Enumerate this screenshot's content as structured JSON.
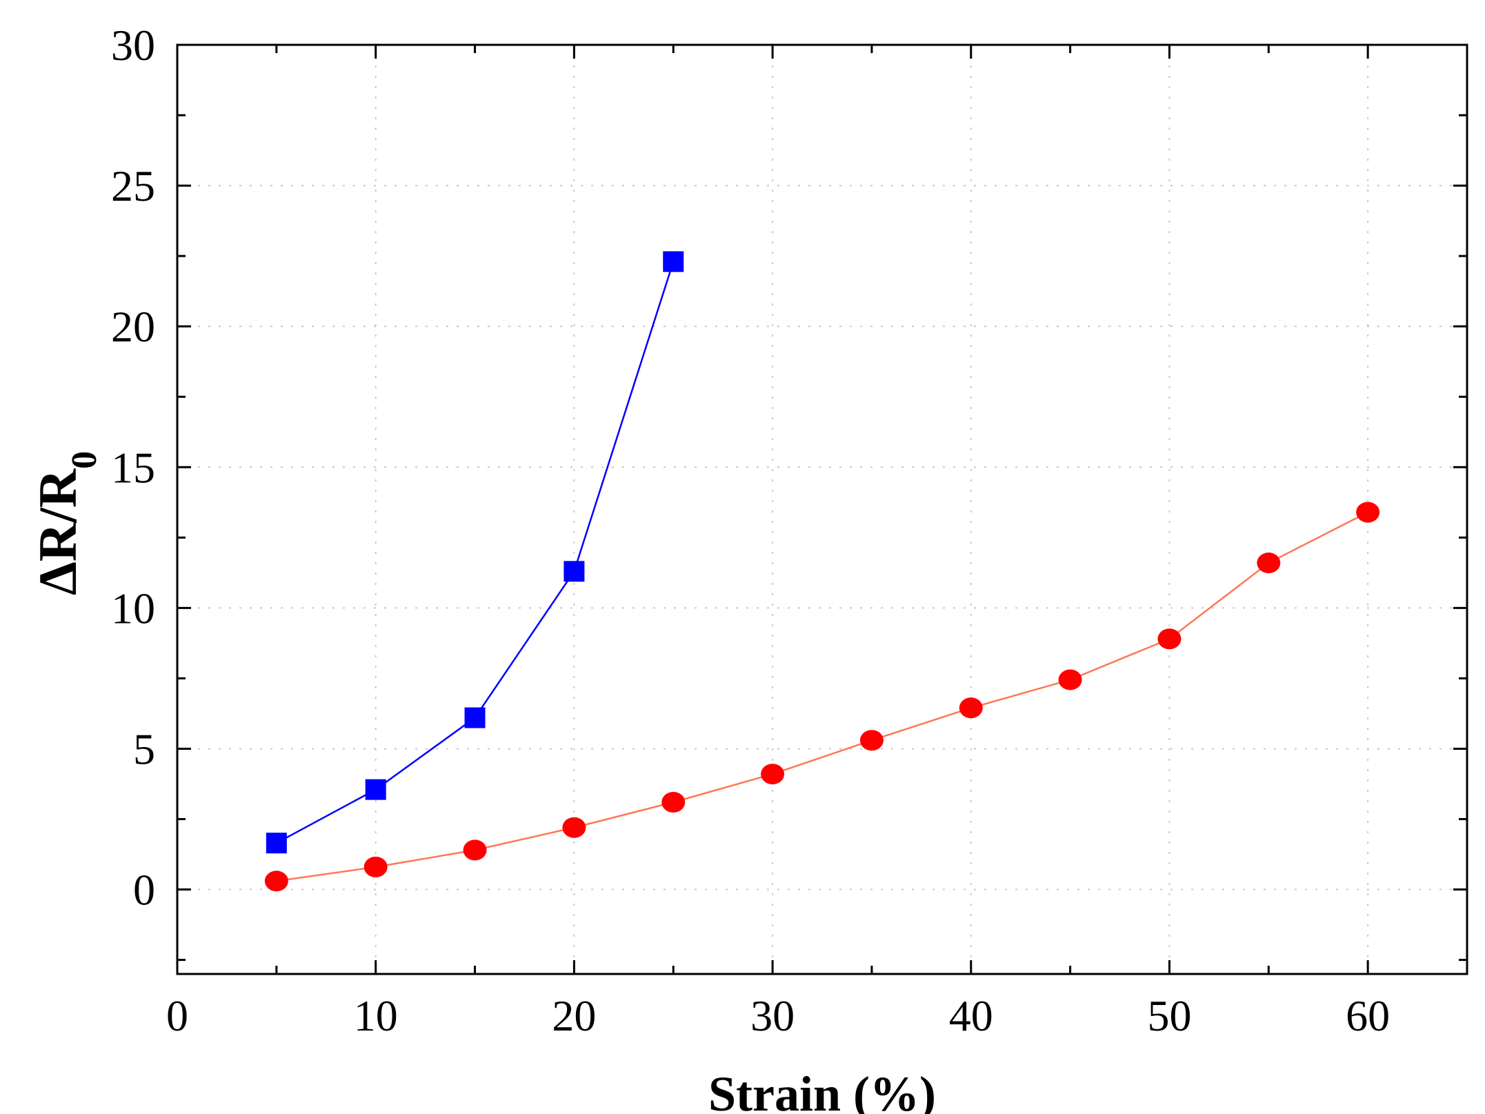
{
  "chart_data": {
    "type": "line",
    "title": "",
    "xlabel": "Strain (%)",
    "ylabel_main": "ΔR/R",
    "ylabel_sub": "0",
    "xlim": [
      0,
      65
    ],
    "ylim": [
      -3,
      30
    ],
    "xticks": [
      0,
      10,
      20,
      30,
      40,
      50,
      60
    ],
    "yticks": [
      0,
      5,
      10,
      15,
      20,
      25,
      30
    ],
    "grid": true,
    "legend": "none",
    "series": [
      {
        "name": "series-blue",
        "color": "#0000ff",
        "marker": "square",
        "x": [
          5,
          10,
          15,
          20,
          25
        ],
        "y": [
          1.65,
          3.55,
          6.1,
          11.3,
          22.3
        ]
      },
      {
        "name": "series-red",
        "color": "#ff0000",
        "line_color": "#ff7755",
        "marker": "circle",
        "x": [
          5,
          10,
          15,
          20,
          25,
          30,
          35,
          40,
          45,
          50,
          55,
          60
        ],
        "y": [
          0.3,
          0.8,
          1.4,
          2.2,
          3.1,
          4.1,
          5.3,
          6.45,
          7.45,
          8.9,
          11.6,
          13.4
        ]
      }
    ]
  }
}
